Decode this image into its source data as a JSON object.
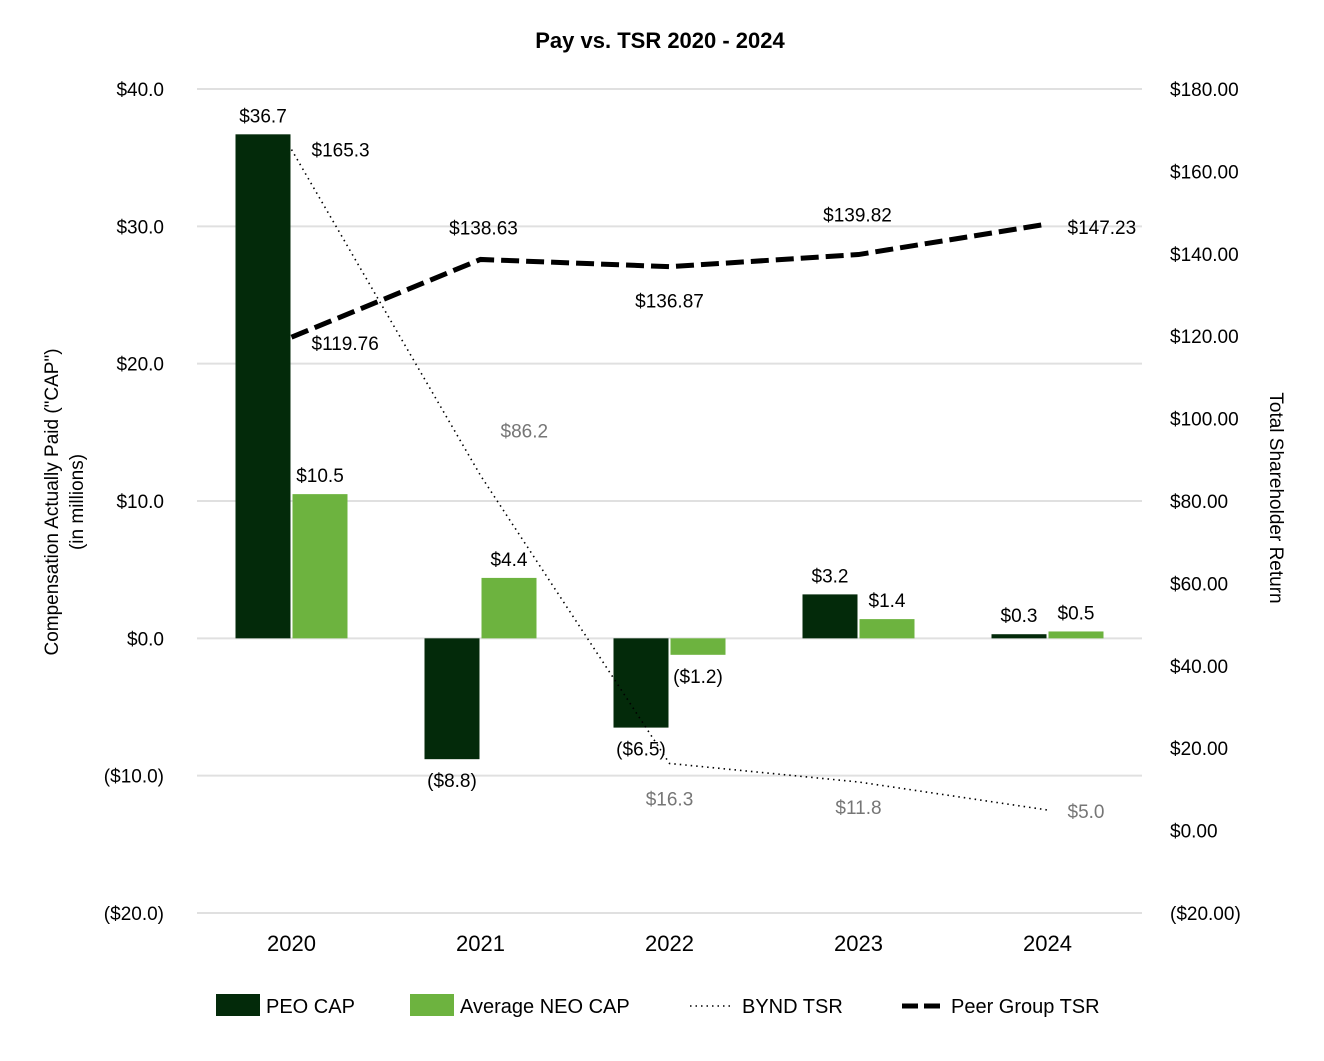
{
  "chart_data": {
    "type": "bar",
    "title": "Pay vs. TSR 2020 - 2024",
    "categories": [
      "2020",
      "2021",
      "2022",
      "2023",
      "2024"
    ],
    "ylabel": "Compensation Actually Paid (\"CAP\")",
    "ylabel_sub": "(in millions)",
    "y2label": "Total Shareholder Return",
    "ylim": [
      -20,
      40
    ],
    "y2lim": [
      -20,
      180
    ],
    "y_ticks": [
      40,
      30,
      20,
      10,
      0,
      -10,
      -20
    ],
    "y_tick_labels": [
      "$40.0",
      "$30.0",
      "$20.0",
      "$10.0",
      "$0.0",
      "($10.0)",
      "($20.0)"
    ],
    "y2_ticks": [
      180,
      160,
      140,
      120,
      100,
      80,
      60,
      40,
      20,
      0,
      -20
    ],
    "y2_tick_labels": [
      "$180.00",
      "$160.00",
      "$140.00",
      "$120.00",
      "$100.00",
      "$80.00",
      "$60.00",
      "$40.00",
      "$20.00",
      "$0.00",
      "($20.00)"
    ],
    "grid": true,
    "legend_position": "bottom",
    "series": [
      {
        "name": "PEO CAP",
        "kind": "bar",
        "axis": "left",
        "color": "#032a0a",
        "values": [
          36.7,
          -8.8,
          -6.5,
          3.2,
          0.3
        ],
        "labels": [
          "$36.7",
          "($8.8)",
          "($6.5)",
          "$3.2",
          "$0.3"
        ]
      },
      {
        "name": "Average NEO CAP",
        "kind": "bar",
        "axis": "left",
        "color": "#6db33f",
        "values": [
          10.5,
          4.4,
          -1.2,
          1.4,
          0.5
        ],
        "labels": [
          "$10.5",
          "$4.4",
          "($1.2)",
          "$1.4",
          "$0.5"
        ]
      },
      {
        "name": "BYND TSR",
        "kind": "line",
        "style": "dotted",
        "axis": "right",
        "color": "#000000",
        "label_color": "#767676",
        "values": [
          165.3,
          86.2,
          16.3,
          11.8,
          5.0
        ],
        "labels": [
          "$165.3",
          "$86.2",
          "$16.3",
          "$11.8",
          "$5.0"
        ]
      },
      {
        "name": "Peer Group TSR",
        "kind": "line",
        "style": "dashed",
        "axis": "right",
        "color": "#000000",
        "values": [
          119.76,
          138.63,
          136.87,
          139.82,
          147.23
        ],
        "labels": [
          "$119.76",
          "$138.63",
          "$136.87",
          "$139.82",
          "$147.23"
        ]
      }
    ]
  }
}
